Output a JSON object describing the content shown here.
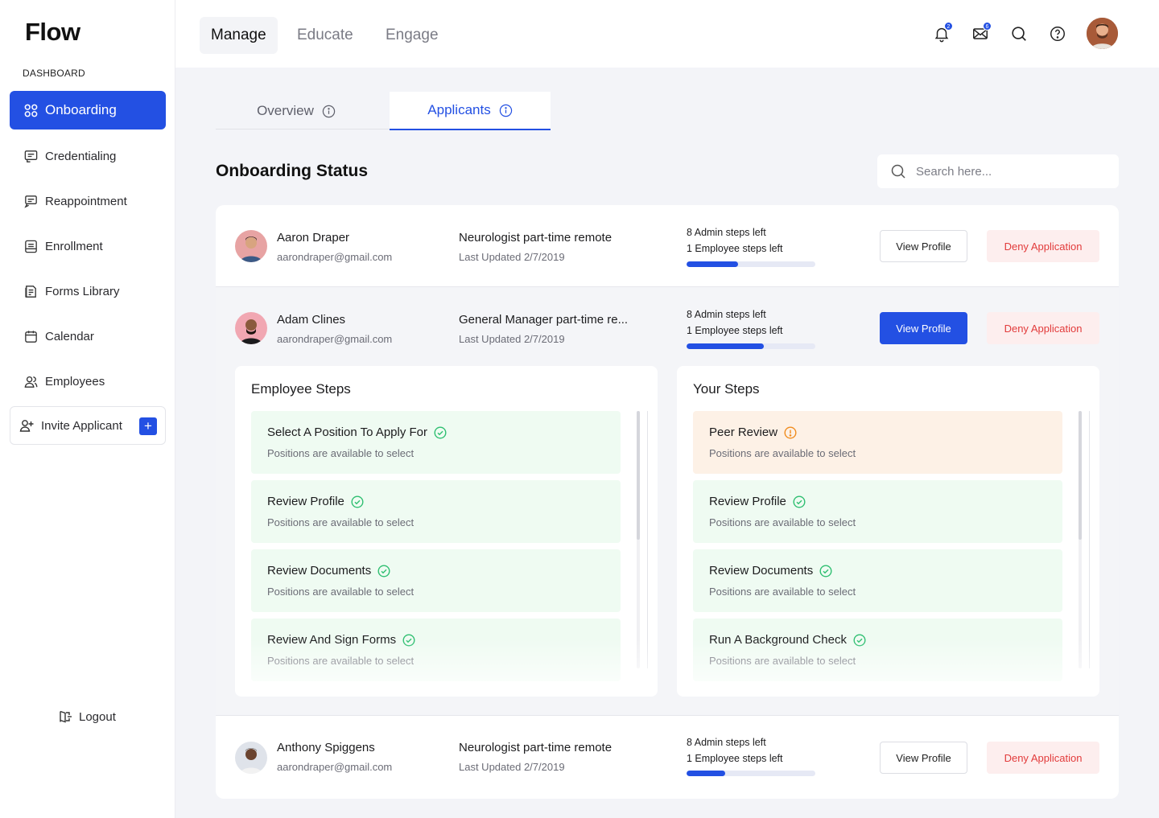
{
  "app": {
    "logo": "Flow"
  },
  "sidebar": {
    "section_label": "DASHBOARD",
    "items": [
      {
        "label": "Onboarding",
        "icon": "grid-icon",
        "active": true
      },
      {
        "label": "Credentialing",
        "icon": "credential-icon"
      },
      {
        "label": "Reappointment",
        "icon": "reappointment-icon"
      },
      {
        "label": "Enrollment",
        "icon": "enrollment-icon"
      },
      {
        "label": "Forms Library",
        "icon": "forms-icon"
      },
      {
        "label": "Calendar",
        "icon": "calendar-icon"
      },
      {
        "label": "Employees",
        "icon": "users-icon"
      }
    ],
    "invite_label": "Invite Applicant",
    "invite_plus": "+",
    "logout_label": "Logout"
  },
  "header": {
    "tabs": [
      "Manage",
      "Educate",
      "Engage"
    ],
    "active_tab": "Manage",
    "notifications_count": "2",
    "messages_count": "6"
  },
  "subtabs": {
    "overview": "Overview",
    "applicants": "Applicants",
    "active": "Applicants"
  },
  "main": {
    "title": "Onboarding Status",
    "search_placeholder": "Search here..."
  },
  "applicants": [
    {
      "name": "Aaron Draper",
      "email": "aarondraper@gmail.com",
      "position": "Neurologist part-time remote",
      "updated": "Last Updated 2/7/2019",
      "admin_steps": "8 Admin steps left",
      "employee_steps": "1 Employee steps left",
      "progress": 0.4,
      "view_label": "View Profile",
      "deny_label": "Deny Application"
    },
    {
      "name": "Adam Clines",
      "email": "aarondraper@gmail.com",
      "position": "General Manager part-time re...",
      "updated": "Last Updated 2/7/2019",
      "admin_steps": "8 Admin steps left",
      "employee_steps": "1 Employee steps left",
      "progress": 0.6,
      "view_label": "View Profile",
      "deny_label": "Deny Application"
    },
    {
      "name": "Anthony Spiggens",
      "email": "aarondraper@gmail.com",
      "position": "Neurologist part-time remote",
      "updated": "Last Updated 2/7/2019",
      "admin_steps": "8 Admin steps left",
      "employee_steps": "1 Employee steps left",
      "progress": 0.3,
      "view_label": "View Profile",
      "deny_label": "Deny Application"
    }
  ],
  "employee_steps": {
    "title": "Employee Steps",
    "items": [
      {
        "title": "Select  A Position To  Apply For",
        "desc": "Positions are available to select",
        "status": "done"
      },
      {
        "title": "Review Profile",
        "desc": "Positions are available to select",
        "status": "done"
      },
      {
        "title": "Review Documents",
        "desc": "Positions are available to select",
        "status": "done"
      },
      {
        "title": "Review And Sign Forms",
        "desc": "Positions are available to select",
        "status": "done"
      }
    ]
  },
  "your_steps": {
    "title": "Your Steps",
    "items": [
      {
        "title": "Peer Review",
        "desc": "Positions are available to select",
        "status": "pending"
      },
      {
        "title": "Review Profile",
        "desc": "Positions are available to select",
        "status": "done"
      },
      {
        "title": "Review Documents",
        "desc": "Positions are available to select",
        "status": "done"
      },
      {
        "title": "Run A Background Check",
        "desc": "Positions are available to select",
        "status": "done"
      }
    ]
  },
  "colors": {
    "accent": "#2350e3",
    "danger": "#e23b3b",
    "success": "#2fbf71",
    "warning": "#f08c1e"
  }
}
